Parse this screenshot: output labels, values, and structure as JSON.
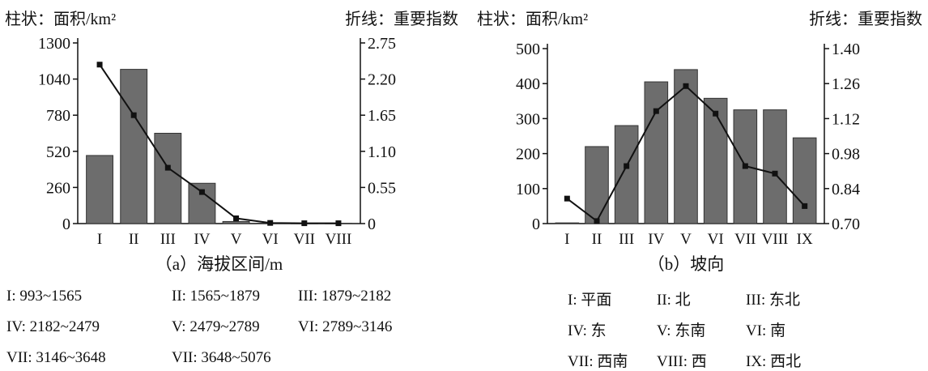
{
  "chart_data": [
    {
      "type": "bar",
      "combo": "bar+line",
      "left_axis_label": "柱状：面积/km²",
      "right_axis_label": "折线：重要指数",
      "xlabel": "（a）海拔区间/m",
      "categories": [
        "I",
        "II",
        "III",
        "IV",
        "V",
        "VI",
        "VII",
        "VIII"
      ],
      "bar_values": [
        490,
        1110,
        650,
        290,
        15,
        3,
        2,
        2
      ],
      "line_values": [
        2.42,
        1.65,
        0.85,
        0.48,
        0.08,
        0.01,
        0.005,
        0.005
      ],
      "y_left_ticks": [
        "1300",
        "1040",
        "780",
        "520",
        "260",
        "0"
      ],
      "y_right_ticks": [
        "2.75",
        "2.20",
        "1.65",
        "1.10",
        "0.55",
        "0"
      ],
      "ylim_left": [
        0,
        1300
      ],
      "ylim_right": [
        0,
        2.75
      ],
      "legend_notes": [
        "I: 993~1565",
        "II: 1565~1879",
        "III: 1879~2182",
        "IV: 2182~2479",
        "V: 2479~2789",
        "VI: 2789~3146",
        "VII: 3146~3648",
        "VII: 3648~5076"
      ]
    },
    {
      "type": "bar",
      "combo": "bar+line",
      "left_axis_label": "柱状：面积/km²",
      "right_axis_label": "折线：重要指数",
      "xlabel": "（b）坡向",
      "categories": [
        "I",
        "II",
        "III",
        "IV",
        "V",
        "VI",
        "VII",
        "VIII",
        "IX"
      ],
      "bar_values": [
        2,
        220,
        280,
        405,
        440,
        358,
        325,
        325,
        245
      ],
      "line_values": [
        0.8,
        0.71,
        0.93,
        1.15,
        1.25,
        1.14,
        0.93,
        0.9,
        0.77
      ],
      "y_left_ticks": [
        "500",
        "400",
        "300",
        "200",
        "100",
        "0"
      ],
      "y_right_ticks": [
        "1.40",
        "1.26",
        "1.12",
        "0.98",
        "0.84",
        "0.70"
      ],
      "ylim_left": [
        0,
        500
      ],
      "ylim_right": [
        0.7,
        1.4
      ],
      "legend_notes": [
        "I:  平面",
        "II:  北",
        "III:  东北",
        "IV:  东",
        "V:  东南",
        "VI:  南",
        "VII:  西南",
        "VIII:  西",
        "IX:  西北"
      ]
    }
  ]
}
